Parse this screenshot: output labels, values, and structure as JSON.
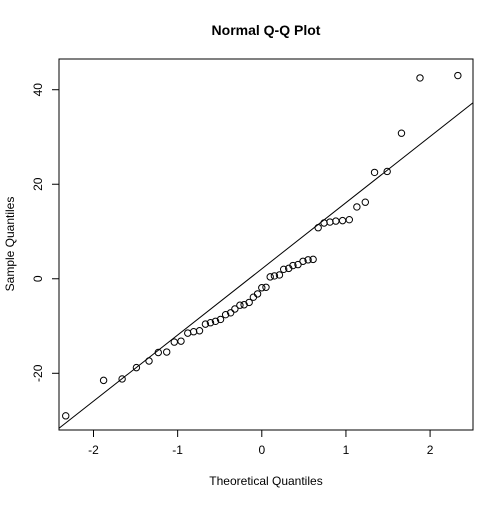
{
  "chart_data": {
    "type": "scatter",
    "title": "Normal Q-Q Plot",
    "xlabel": "Theoretical Quantiles",
    "ylabel": "Sample Quantiles",
    "xlim": [
      -2.41,
      2.51
    ],
    "ylim": [
      -32.0,
      46.5
    ],
    "xticks": [
      -2,
      -1,
      0,
      1,
      2
    ],
    "xtick_labels": [
      "-2",
      "-1",
      "0",
      "1",
      "2"
    ],
    "yticks": [
      -20,
      0,
      20,
      40
    ],
    "ytick_labels": [
      "-20",
      "0",
      "20",
      "40"
    ],
    "grid": false,
    "reference_line": {
      "intercept": 2.1,
      "slope": 14.0
    },
    "series": [
      {
        "x": [
          -2.33,
          -1.88,
          -1.66,
          -1.49,
          -1.34,
          -1.23,
          -1.13,
          -1.04,
          -0.96,
          -0.88,
          -0.81,
          -0.74,
          -0.67,
          -0.61,
          -0.55,
          -0.49,
          -0.43,
          -0.37,
          -0.32,
          -0.26,
          -0.21,
          -0.15,
          -0.1,
          -0.05,
          0.0,
          0.05,
          0.1,
          0.15,
          0.21,
          0.26,
          0.32,
          0.37,
          0.43,
          0.49,
          0.55,
          0.61,
          0.67,
          0.74,
          0.81,
          0.88,
          0.96,
          1.04,
          1.13,
          1.23,
          1.34,
          1.49,
          1.66,
          1.88,
          2.33
        ],
        "y": [
          -29.0,
          -21.5,
          -21.2,
          -18.8,
          -17.4,
          -15.6,
          -15.5,
          -13.4,
          -13.2,
          -11.5,
          -11.2,
          -11.0,
          -9.6,
          -9.3,
          -9.0,
          -8.6,
          -7.6,
          -7.2,
          -6.4,
          -5.6,
          -5.5,
          -5.0,
          -3.9,
          -3.2,
          -1.9,
          -1.8,
          0.4,
          0.6,
          0.8,
          2.0,
          2.2,
          2.8,
          3.0,
          3.7,
          4.0,
          4.1,
          10.8,
          11.8,
          12.0,
          12.2,
          12.3,
          12.5,
          15.2,
          16.2,
          22.5,
          22.7,
          30.8,
          42.5,
          43.0
        ]
      }
    ]
  }
}
